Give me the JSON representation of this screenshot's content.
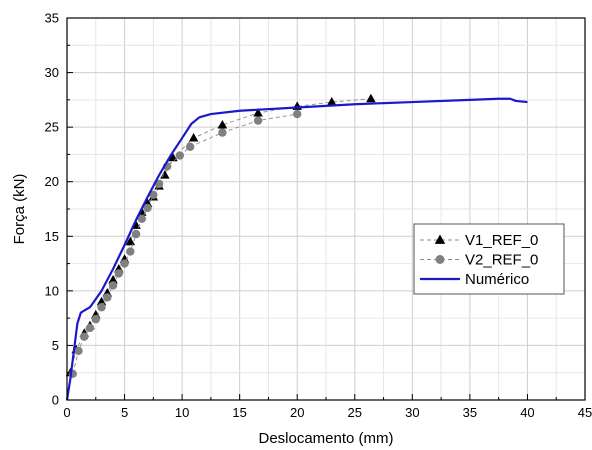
{
  "chart_data": {
    "type": "line",
    "xlabel": "Deslocamento (mm)",
    "ylabel": "Força (kN)",
    "xlim": [
      0,
      45
    ],
    "ylim": [
      0,
      35
    ],
    "xticks": [
      0,
      5,
      10,
      15,
      20,
      25,
      30,
      35,
      40,
      45
    ],
    "yticks": [
      0,
      5,
      10,
      15,
      20,
      25,
      30,
      35
    ],
    "grid": true,
    "legend_position": "right",
    "series": [
      {
        "name": "V1_REF_0",
        "color": "#000000",
        "marker": "triangle",
        "line_style": "dashed",
        "points": [
          [
            0.3,
            2.5
          ],
          [
            0.8,
            4.6
          ],
          [
            1.5,
            6.1
          ],
          [
            2.0,
            6.8
          ],
          [
            2.5,
            7.8
          ],
          [
            3.0,
            9.0
          ],
          [
            3.5,
            9.8
          ],
          [
            4.0,
            11.0
          ],
          [
            4.5,
            12.0
          ],
          [
            5.0,
            12.9
          ],
          [
            5.5,
            14.5
          ],
          [
            6.0,
            16.0
          ],
          [
            6.5,
            17.2
          ],
          [
            7.0,
            18.0
          ],
          [
            7.5,
            18.6
          ],
          [
            8.0,
            19.6
          ],
          [
            8.5,
            20.6
          ],
          [
            9.2,
            22.2
          ],
          [
            11.0,
            24.0
          ],
          [
            13.5,
            25.2
          ],
          [
            16.6,
            26.3
          ],
          [
            20.0,
            26.9
          ],
          [
            23.0,
            27.3
          ],
          [
            26.4,
            27.6
          ]
        ]
      },
      {
        "name": "V2_REF_0",
        "color": "#808080",
        "marker": "circle",
        "line_style": "dashed",
        "points": [
          [
            0.5,
            2.4
          ],
          [
            1.0,
            4.5
          ],
          [
            1.5,
            5.8
          ],
          [
            2.0,
            6.6
          ],
          [
            2.5,
            7.4
          ],
          [
            3.0,
            8.5
          ],
          [
            3.5,
            9.4
          ],
          [
            4.0,
            10.5
          ],
          [
            4.5,
            11.6
          ],
          [
            5.0,
            12.5
          ],
          [
            5.5,
            13.6
          ],
          [
            6.0,
            15.2
          ],
          [
            6.5,
            16.6
          ],
          [
            7.0,
            17.6
          ],
          [
            7.5,
            18.8
          ],
          [
            8.0,
            19.8
          ],
          [
            8.7,
            21.4
          ],
          [
            9.8,
            22.4
          ],
          [
            10.7,
            23.2
          ],
          [
            13.5,
            24.5
          ],
          [
            16.6,
            25.6
          ],
          [
            20.0,
            26.2
          ]
        ]
      },
      {
        "name": "Numérico",
        "color": "#1a1acc",
        "marker": "none",
        "line_style": "solid",
        "points": [
          [
            0,
            0
          ],
          [
            0.3,
            2.0
          ],
          [
            0.6,
            4.5
          ],
          [
            0.9,
            7.0
          ],
          [
            1.2,
            8.0
          ],
          [
            1.5,
            8.2
          ],
          [
            2.0,
            8.5
          ],
          [
            3.0,
            10.0
          ],
          [
            4.0,
            12.0
          ],
          [
            5.0,
            14.2
          ],
          [
            6.0,
            16.5
          ],
          [
            7.0,
            18.6
          ],
          [
            8.0,
            20.6
          ],
          [
            9.0,
            22.4
          ],
          [
            10.0,
            24.0
          ],
          [
            10.8,
            25.3
          ],
          [
            11.5,
            25.9
          ],
          [
            12.5,
            26.2
          ],
          [
            15.0,
            26.5
          ],
          [
            20.0,
            26.8
          ],
          [
            25.0,
            27.1
          ],
          [
            30.0,
            27.3
          ],
          [
            35.0,
            27.5
          ],
          [
            37.5,
            27.6
          ],
          [
            38.5,
            27.6
          ],
          [
            39.0,
            27.4
          ],
          [
            40.0,
            27.3
          ]
        ]
      }
    ]
  }
}
